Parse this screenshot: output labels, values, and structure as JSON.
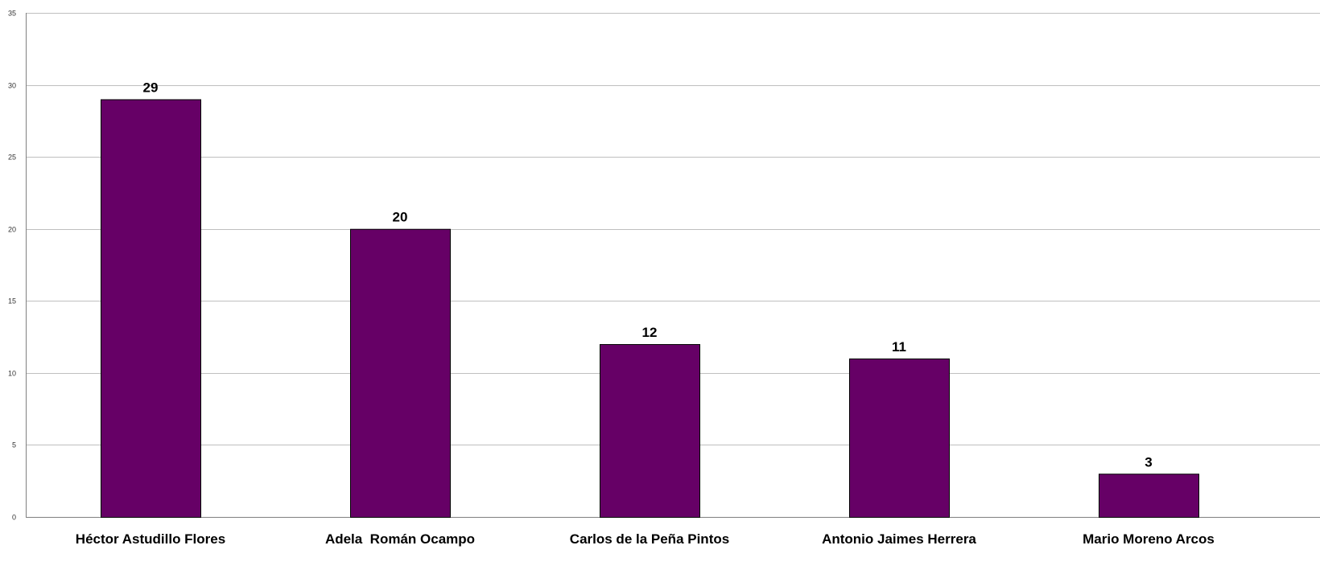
{
  "chart_data": {
    "type": "bar",
    "categories": [
      "Héctor Astudillo Flores",
      "Adela  Román Ocampo",
      "Carlos de la Peña Pintos",
      "Antonio Jaimes Herrera",
      "Mario Moreno Arcos"
    ],
    "values": [
      29,
      20,
      12,
      11,
      3
    ],
    "data_labels": [
      "29",
      "20",
      "12",
      "11",
      "3"
    ],
    "ylim": [
      0,
      35
    ],
    "yticks": [
      0,
      5,
      10,
      15,
      20,
      25,
      30,
      35
    ],
    "ytick_labels": [
      "0",
      "5",
      "10",
      "15",
      "20",
      "25",
      "30",
      "35"
    ],
    "title": "",
    "xlabel": "",
    "ylabel": "",
    "grid": true,
    "legend": "none",
    "bar_color": "#660066"
  }
}
